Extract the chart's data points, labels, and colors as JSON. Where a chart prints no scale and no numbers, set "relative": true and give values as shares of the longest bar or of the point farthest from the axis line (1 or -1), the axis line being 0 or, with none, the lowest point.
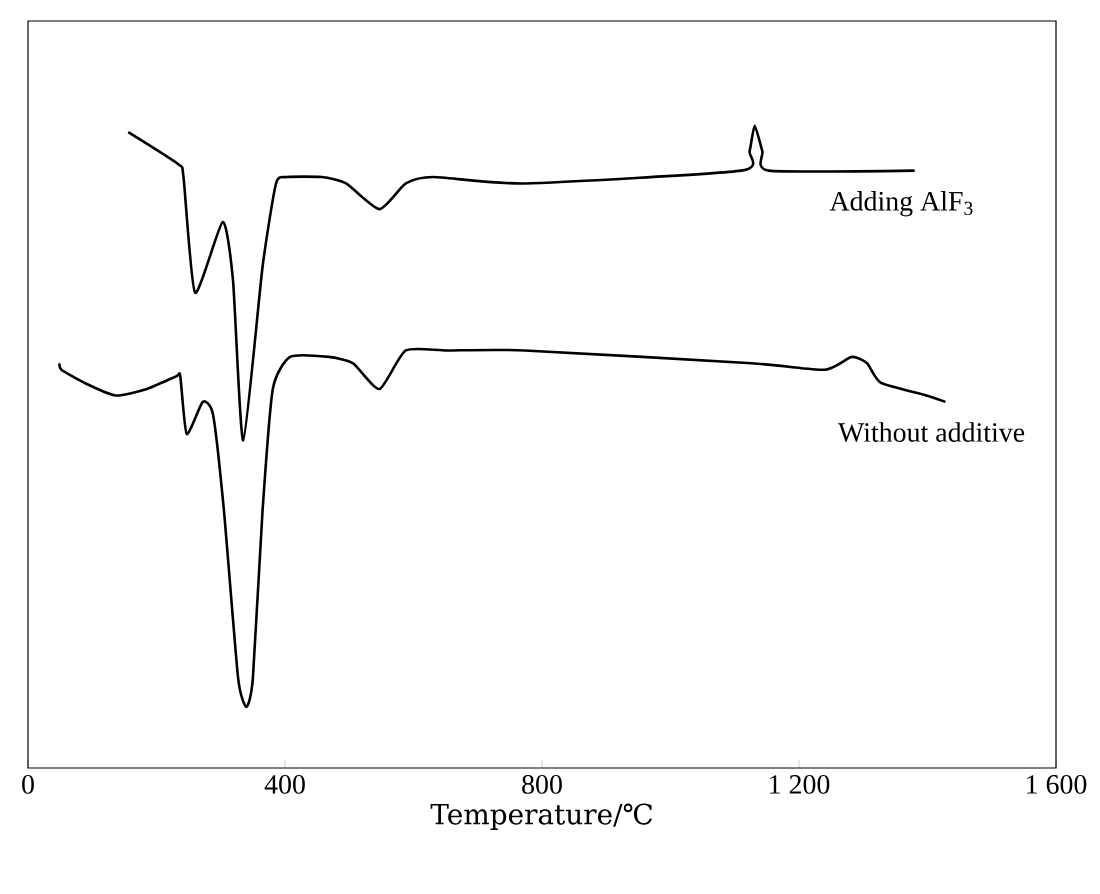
{
  "chart_data": {
    "type": "line",
    "relative": true,
    "xlabel": "Temperature/℃",
    "xlim": [
      0,
      1600
    ],
    "xticks": [
      0,
      400,
      800,
      {
        "value": 1200,
        "label": "1 200"
      },
      {
        "value": 1600,
        "label": "1 600"
      }
    ],
    "tick_labels": "x",
    "series": [
      {
        "color": "#000000",
        "x": [
          156,
          234,
          242,
          260,
          303,
          319,
          335,
          365,
          386,
          403,
          457,
          495,
          547,
          588,
          631,
          773,
          1110,
          1123,
          1131,
          1143,
          1153,
          1380
        ],
        "values": [
          0.99,
          0.94,
          0.92,
          0.74,
          0.85,
          0.76,
          0.51,
          0.78,
          0.91,
          0.92,
          0.92,
          0.91,
          0.87,
          0.91,
          0.92,
          0.91,
          0.93,
          0.96,
          1.0,
          0.96,
          0.93,
          0.93
        ]
      },
      {
        "color": "#000000",
        "x": [
          49,
          52,
          87,
          136,
          185,
          231,
          237,
          247,
          272,
          288,
          305,
          327,
          340,
          350,
          365,
          381,
          408,
          468,
          506,
          547,
          588,
          653,
          773,
          1126,
          1240,
          1282,
          1306,
          1327,
          1398,
          1428
        ],
        "values": [
          0.63,
          0.62,
          0.6,
          0.58,
          0.59,
          0.61,
          0.61,
          0.52,
          0.57,
          0.55,
          0.4,
          0.14,
          0.095,
          0.14,
          0.4,
          0.59,
          0.64,
          0.64,
          0.63,
          0.59,
          0.65,
          0.65,
          0.65,
          0.63,
          0.62,
          0.64,
          0.63,
          0.6,
          0.58,
          0.57
        ]
      }
    ],
    "annotations": [
      "Adding AlF$_{3}$",
      "Without additive"
    ]
  }
}
